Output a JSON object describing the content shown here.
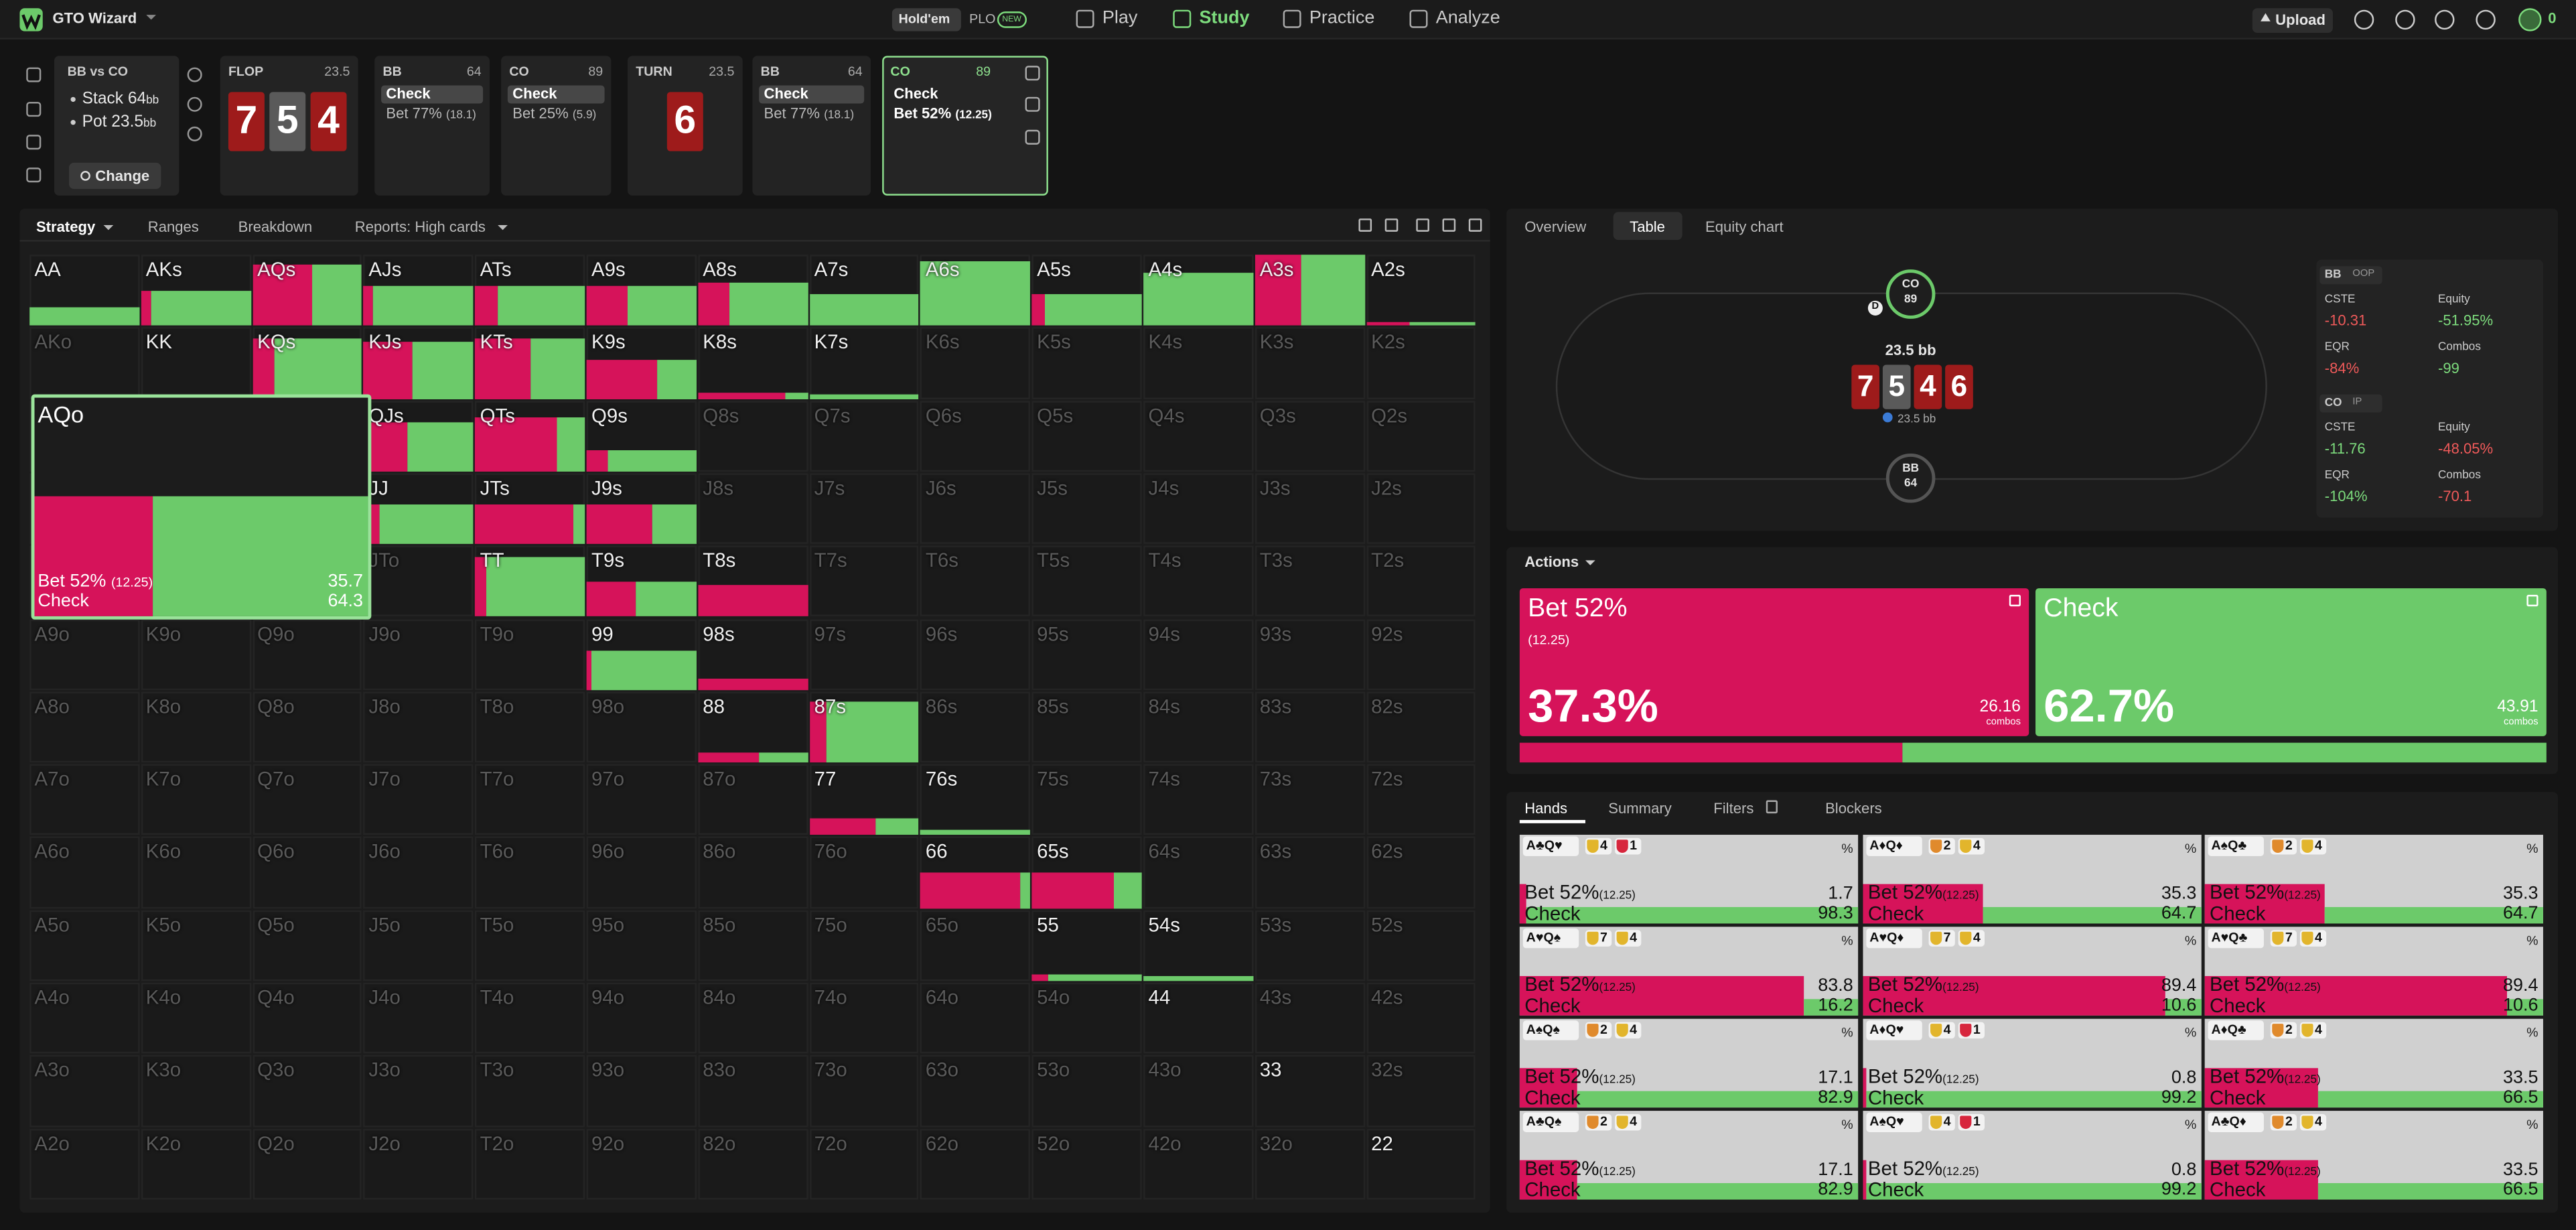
{
  "topbar": {
    "brand": "GTO Wizard",
    "modes": [
      "Hold'em",
      "PLO"
    ],
    "badge": "NEW",
    "nav": [
      "Play",
      "Study",
      "Practice",
      "Analyze"
    ],
    "active_nav": 1,
    "upload": "Upload",
    "balance": "0"
  },
  "spot": {
    "title": "BB vs CO",
    "stack_label": "Stack",
    "stack": "64",
    "pot_label": "Pot",
    "pot": "23.5",
    "unit": "bb",
    "change": "Change"
  },
  "nodes": [
    {
      "label": "FLOP",
      "value": "23.5",
      "cards": [
        {
          "rank": "7",
          "color": "#9e1b1b"
        },
        {
          "rank": "5",
          "color": "#5a5a5a"
        },
        {
          "rank": "4",
          "color": "#9e1b1b"
        }
      ]
    },
    {
      "label": "BB",
      "value": "64",
      "actions": [
        {
          "name": "Check"
        },
        {
          "name": "Bet 77%",
          "size": "(18.1)"
        }
      ]
    },
    {
      "label": "CO",
      "value": "89",
      "actions": [
        {
          "name": "Check"
        },
        {
          "name": "Bet 25%",
          "size": "(5.9)"
        }
      ]
    },
    {
      "label": "TURN",
      "value": "23.5",
      "cards": [
        {
          "rank": "6",
          "color": "#9e1b1b"
        }
      ]
    },
    {
      "label": "BB",
      "value": "64",
      "actions": [
        {
          "name": "Check"
        },
        {
          "name": "Bet 77%",
          "size": "(18.1)"
        }
      ]
    },
    {
      "label": "CO",
      "value": "89",
      "selected": true,
      "actions": [
        {
          "name": "Check"
        },
        {
          "name": "Bet 52%",
          "size": "(12.25)"
        }
      ]
    }
  ],
  "strategy_tabs": [
    "Strategy",
    "Ranges",
    "Breakdown",
    "Reports: High cards"
  ],
  "grid": {
    "colors": {
      "bet": "#d6135a",
      "check": "#6cca6a"
    },
    "labels": [
      [
        "AA",
        "AKs",
        "AQs",
        "AJs",
        "ATs",
        "A9s",
        "A8s",
        "A7s",
        "A6s",
        "A5s",
        "A4s",
        "A3s",
        "A2s"
      ],
      [
        "AKo",
        "KK",
        "KQs",
        "KJs",
        "KTs",
        "K9s",
        "K8s",
        "K7s",
        "K6s",
        "K5s",
        "K4s",
        "K3s",
        "K2s"
      ],
      [
        null,
        null,
        null,
        "QJs",
        "QTs",
        "Q9s",
        "Q8s",
        "Q7s",
        "Q6s",
        "Q5s",
        "Q4s",
        "Q3s",
        "Q2s"
      ],
      [
        null,
        null,
        null,
        "JJ",
        "JTs",
        "J9s",
        "J8s",
        "J7s",
        "J6s",
        "J5s",
        "J4s",
        "J3s",
        "J2s"
      ],
      [
        null,
        null,
        null,
        "JTo",
        "TT",
        "T9s",
        "T8s",
        "T7s",
        "T6s",
        "T5s",
        "T4s",
        "T3s",
        "T2s"
      ],
      [
        "A9o",
        "K9o",
        "Q9o",
        "J9o",
        "T9o",
        "99",
        "98s",
        "97s",
        "96s",
        "95s",
        "94s",
        "93s",
        "92s"
      ],
      [
        "A8o",
        "K8o",
        "Q8o",
        "J8o",
        "T8o",
        "98o",
        "88",
        "87s",
        "86s",
        "85s",
        "84s",
        "83s",
        "82s"
      ],
      [
        "A7o",
        "K7o",
        "Q7o",
        "J7o",
        "T7o",
        "97o",
        "87o",
        "77",
        "76s",
        "75s",
        "74s",
        "73s",
        "72s"
      ],
      [
        "A6o",
        "K6o",
        "Q6o",
        "J6o",
        "T6o",
        "96o",
        "86o",
        "76o",
        "66",
        "65s",
        "64s",
        "63s",
        "62s"
      ],
      [
        "A5o",
        "K5o",
        "Q5o",
        "J5o",
        "T5o",
        "95o",
        "85o",
        "75o",
        "65o",
        "55",
        "54s",
        "53s",
        "52s"
      ],
      [
        "A4o",
        "K4o",
        "Q4o",
        "J4o",
        "T4o",
        "94o",
        "84o",
        "74o",
        "64o",
        "54o",
        "44",
        "43s",
        "42s"
      ],
      [
        "A3o",
        "K3o",
        "Q3o",
        "J3o",
        "T3o",
        "93o",
        "83o",
        "73o",
        "63o",
        "53o",
        "43o",
        "33",
        "32s"
      ],
      [
        "A2o",
        "K2o",
        "Q2o",
        "J2o",
        "T2o",
        "92o",
        "82o",
        "72o",
        "62o",
        "52o",
        "42o",
        "32o",
        "22"
      ]
    ],
    "bet": [
      [
        0,
        10,
        55,
        8,
        20,
        38,
        28,
        0,
        0,
        12,
        0,
        42,
        40
      ],
      [
        null,
        0,
        20,
        45,
        50,
        65,
        80,
        0,
        null,
        null,
        null,
        null,
        null
      ],
      [
        null,
        null,
        null,
        40,
        75,
        20,
        null,
        null,
        null,
        null,
        null,
        null,
        null
      ],
      [
        null,
        null,
        null,
        15,
        90,
        60,
        null,
        null,
        null,
        null,
        null,
        null,
        null
      ],
      [
        null,
        null,
        null,
        null,
        10,
        45,
        100,
        null,
        null,
        null,
        null,
        null,
        null
      ],
      [
        null,
        null,
        null,
        null,
        null,
        5,
        100,
        null,
        null,
        null,
        null,
        null,
        null
      ],
      [
        null,
        null,
        null,
        null,
        null,
        null,
        55,
        15,
        null,
        null,
        null,
        null,
        null
      ],
      [
        null,
        null,
        null,
        null,
        null,
        null,
        null,
        60,
        0,
        null,
        null,
        null,
        null
      ],
      [
        null,
        null,
        null,
        null,
        null,
        null,
        null,
        null,
        90,
        75,
        null,
        null,
        null
      ],
      [
        null,
        null,
        null,
        null,
        null,
        null,
        null,
        null,
        null,
        15,
        0,
        null,
        null
      ],
      [
        null,
        null,
        null,
        null,
        null,
        null,
        null,
        null,
        null,
        null,
        0,
        null,
        null
      ],
      [
        null,
        null,
        null,
        null,
        null,
        null,
        null,
        null,
        null,
        null,
        null,
        0,
        null
      ],
      [
        null,
        null,
        null,
        null,
        null,
        null,
        null,
        null,
        null,
        null,
        null,
        null,
        0
      ]
    ],
    "weight": [
      [
        0.25,
        0.5,
        0.85,
        0.55,
        0.55,
        0.55,
        0.6,
        0.45,
        0.9,
        0.45,
        0.75,
        1,
        0.05
      ],
      [
        null,
        0,
        0.85,
        0.8,
        0.85,
        0.55,
        0.08,
        0.05,
        null,
        null,
        null,
        null,
        null
      ],
      [
        null,
        null,
        null,
        0.7,
        0.75,
        0.3,
        null,
        null,
        null,
        null,
        null,
        null,
        null
      ],
      [
        null,
        null,
        null,
        0.55,
        0.55,
        0.55,
        null,
        null,
        null,
        null,
        null,
        null,
        null
      ],
      [
        null,
        null,
        null,
        null,
        0.85,
        0.5,
        0.45,
        null,
        null,
        null,
        null,
        null,
        null
      ],
      [
        null,
        null,
        null,
        null,
        null,
        0.55,
        0.15,
        null,
        null,
        null,
        null,
        null,
        null
      ],
      [
        null,
        null,
        null,
        null,
        null,
        null,
        0.15,
        0.85,
        null,
        null,
        null,
        null,
        null
      ],
      [
        null,
        null,
        null,
        null,
        null,
        null,
        null,
        0.25,
        0.08,
        null,
        null,
        null,
        null
      ],
      [
        null,
        null,
        null,
        null,
        null,
        null,
        null,
        null,
        0.5,
        0.5,
        null,
        null,
        null
      ],
      [
        null,
        null,
        null,
        null,
        null,
        null,
        null,
        null,
        null,
        0.1,
        0.08,
        null,
        null
      ],
      [
        null,
        null,
        null,
        null,
        null,
        null,
        null,
        null,
        null,
        null,
        0,
        null,
        null
      ],
      [
        null,
        null,
        null,
        null,
        null,
        null,
        null,
        null,
        null,
        null,
        null,
        0,
        null
      ],
      [
        null,
        null,
        null,
        null,
        null,
        null,
        null,
        null,
        null,
        null,
        null,
        null,
        0
      ]
    ],
    "selected": {
      "label": "AQo",
      "actions": [
        {
          "name": "Bet 52%",
          "size": "(12.25)",
          "value": 35.7
        },
        {
          "name": "Check",
          "value": 64.3
        }
      ]
    }
  },
  "table": {
    "tabs": [
      "Overview",
      "Table",
      "Equity chart"
    ],
    "active_tab": 1,
    "seats": [
      {
        "name": "CO",
        "stack": "89"
      },
      {
        "name": "BB",
        "stack": "64"
      }
    ],
    "dealer": "D",
    "pot": "23.5 bb",
    "pot_small": "23.5 bb",
    "board": [
      {
        "rank": "7",
        "color": "#9e1b1b"
      },
      {
        "rank": "5",
        "color": "#5a5a5a"
      },
      {
        "rank": "4",
        "color": "#9e1b1b"
      },
      {
        "rank": "6",
        "color": "#9e1b1b"
      }
    ],
    "players": [
      {
        "name": "BB",
        "pos": "OOP",
        "stats": [
          {
            "label": "CSTE",
            "value": "-10.31",
            "color": "#f05a5a"
          },
          {
            "label": "Equity",
            "value": "-51.95%",
            "color": "#7ddc7d"
          },
          {
            "label": "EQR",
            "value": "-84%",
            "color": "#f05a5a"
          },
          {
            "label": "Combos",
            "value": "-99",
            "color": "#7ddc7d"
          }
        ]
      },
      {
        "name": "CO",
        "pos": "IP",
        "stats": [
          {
            "label": "CSTE",
            "value": "-11.76",
            "color": "#7ddc7d"
          },
          {
            "label": "Equity",
            "value": "-48.05%",
            "color": "#f05a5a"
          },
          {
            "label": "EQR",
            "value": "-104%",
            "color": "#7ddc7d"
          },
          {
            "label": "Combos",
            "value": "-70.1",
            "color": "#f05a5a"
          }
        ]
      }
    ]
  },
  "actions": {
    "title": "Actions",
    "combos_unit": "combos",
    "items": [
      {
        "name": "Bet 52%",
        "size": "(12.25)",
        "freq": 37.3,
        "freq_label": "37.3%",
        "combos": 26.16,
        "color": "#d6135a"
      },
      {
        "name": "Check",
        "freq": 62.7,
        "freq_label": "62.7%",
        "combos": 43.91,
        "color": "#6cca6a"
      }
    ]
  },
  "hands": {
    "tabs": [
      "Hands",
      "Summary",
      "Filters",
      "Blockers"
    ],
    "percent": "%",
    "bet_name": "Bet 52%",
    "bet_size": "(12.25)",
    "check_name": "Check",
    "tiles": [
      {
        "cards": "A♣Q♥",
        "blockers": [
          {
            "value": "4",
            "color": "#e2b52c"
          },
          {
            "value": "1",
            "color": "#d7263d"
          }
        ],
        "bet": 1.7,
        "check": 98.3
      },
      {
        "cards": "A♦Q♦",
        "blockers": [
          {
            "value": "2",
            "color": "#e08a2c"
          },
          {
            "value": "4",
            "color": "#e2b52c"
          }
        ],
        "bet": 35.3,
        "check": 64.7
      },
      {
        "cards": "A♠Q♣",
        "blockers": [
          {
            "value": "2",
            "color": "#e08a2c"
          },
          {
            "value": "4",
            "color": "#e2b52c"
          }
        ],
        "bet": 35.3,
        "check": 64.7
      },
      {
        "cards": "A♥Q♠",
        "blockers": [
          {
            "value": "7",
            "color": "#e2b52c"
          },
          {
            "value": "4",
            "color": "#e2b52c"
          }
        ],
        "bet": 83.8,
        "check": 16.2
      },
      {
        "cards": "A♥Q♦",
        "blockers": [
          {
            "value": "7",
            "color": "#e2b52c"
          },
          {
            "value": "4",
            "color": "#e2b52c"
          }
        ],
        "bet": 89.4,
        "check": 10.6
      },
      {
        "cards": "A♥Q♣",
        "blockers": [
          {
            "value": "7",
            "color": "#e2b52c"
          },
          {
            "value": "4",
            "color": "#e2b52c"
          }
        ],
        "bet": 89.4,
        "check": 10.6
      },
      {
        "cards": "A♠Q♠",
        "blockers": [
          {
            "value": "2",
            "color": "#e08a2c"
          },
          {
            "value": "4",
            "color": "#e2b52c"
          }
        ],
        "bet": 17.1,
        "check": 82.9
      },
      {
        "cards": "A♦Q♥",
        "blockers": [
          {
            "value": "4",
            "color": "#e2b52c"
          },
          {
            "value": "1",
            "color": "#d7263d"
          }
        ],
        "bet": 0.8,
        "check": 99.2
      },
      {
        "cards": "A♦Q♣",
        "blockers": [
          {
            "value": "2",
            "color": "#e08a2c"
          },
          {
            "value": "4",
            "color": "#e2b52c"
          }
        ],
        "bet": 33.5,
        "check": 66.5
      },
      {
        "cards": "A♣Q♠",
        "blockers": [
          {
            "value": "2",
            "color": "#e08a2c"
          },
          {
            "value": "4",
            "color": "#e2b52c"
          }
        ],
        "bet": 17.1,
        "check": 82.9
      },
      {
        "cards": "A♠Q♥",
        "blockers": [
          {
            "value": "4",
            "color": "#e2b52c"
          },
          {
            "value": "1",
            "color": "#d7263d"
          }
        ],
        "bet": 0.8,
        "check": 99.2
      },
      {
        "cards": "A♣Q♦",
        "blockers": [
          {
            "value": "2",
            "color": "#e08a2c"
          },
          {
            "value": "4",
            "color": "#e2b52c"
          }
        ],
        "bet": 33.5,
        "check": 66.5
      }
    ]
  }
}
